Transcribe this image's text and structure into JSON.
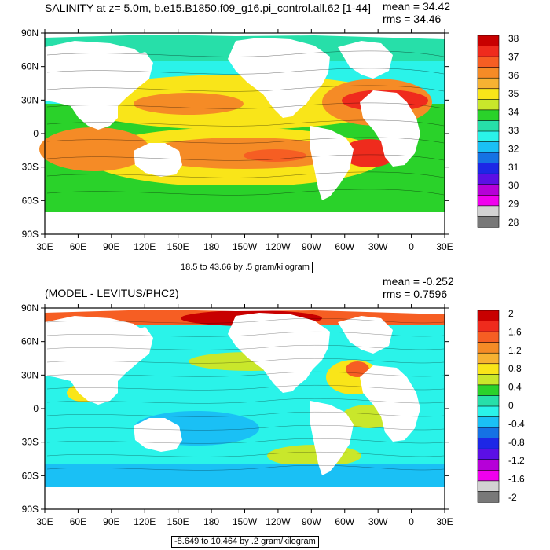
{
  "panels": [
    {
      "id": "salinity",
      "title": "SALINITY at z=   5.0m, b.e15.B1850.f09_g16.pi_control.all.62 [1-44]",
      "mean": "mean = 34.42",
      "rms": "rms = 34.46",
      "footer": "18.5 to 43.66 by .5 gram/kilogram",
      "colorbar_labels": [
        "38",
        "37",
        "36",
        "35",
        "34",
        "33",
        "32",
        "31",
        "30",
        "29",
        "28"
      ],
      "colorbar_colors": [
        "#c80000",
        "#ef2b1d",
        "#f65e23",
        "#f58b26",
        "#f7b232",
        "#f9e519",
        "#c9e72b",
        "#2ad22a",
        "#27dfa9",
        "#2af3e9",
        "#1ac0f5",
        "#1572e4",
        "#1d27e6",
        "#5b0fe5",
        "#b600d8",
        "#f000ee",
        "#d2d2d2",
        "#787878"
      ]
    },
    {
      "id": "difference",
      "title": "(MODEL - LEVITUS/PHC2)",
      "mean": "mean = -0.252",
      "rms": "rms = 0.7596",
      "footer": "-8.649 to 10.464 by .2 gram/kilogram",
      "colorbar_labels": [
        "2",
        "1.6",
        "1.2",
        "0.8",
        "0.4",
        "0",
        "-0.4",
        "-0.8",
        "-1.2",
        "-1.6",
        "-2"
      ],
      "colorbar_colors": [
        "#c80000",
        "#ef2b1d",
        "#f65e23",
        "#f58b26",
        "#f7b232",
        "#f9e519",
        "#c9e72b",
        "#2ad22a",
        "#27dfa9",
        "#2af3e9",
        "#1ac0f5",
        "#1572e4",
        "#1d27e6",
        "#5b0fe5",
        "#b600d8",
        "#f000ee",
        "#d2d2d2",
        "#787878"
      ]
    }
  ],
  "axes": {
    "lat_labels": [
      "90N",
      "60N",
      "30N",
      "0",
      "30S",
      "60S",
      "90S"
    ],
    "lon_labels": [
      "30E",
      "60E",
      "90E",
      "120E",
      "150E",
      "180",
      "150W",
      "120W",
      "90W",
      "60W",
      "30W",
      "0",
      "30E"
    ]
  },
  "palette": {
    "land": "#ffffff",
    "fresh_arctic": "#27dfa9",
    "tropics_pacific": "#f9e519",
    "subtropics": "#f58b26",
    "atlantic_high": "#ef2b1d",
    "southern": "#2ad22a",
    "diff_base": "#2af3e9",
    "diff_low": "#1ac0f5",
    "diff_arctic": "#f65e23",
    "diff_pos": "#f9e519",
    "diff_greenish": "#c9e72b"
  }
}
